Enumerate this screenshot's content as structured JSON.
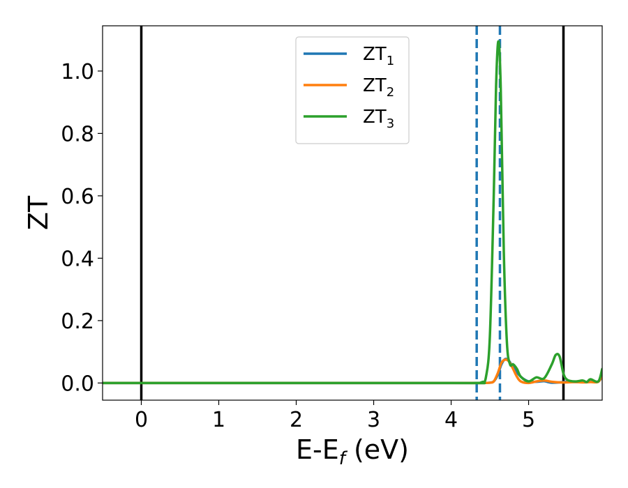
{
  "chart_data": {
    "type": "line",
    "title": "",
    "xlabel": {
      "main": "E-E",
      "sub": "f",
      "suffix": " (eV)"
    },
    "ylabel": "ZT",
    "xlim": [
      -0.5,
      5.95
    ],
    "ylim": [
      -0.055,
      1.145
    ],
    "xticks": [
      0,
      1,
      2,
      3,
      4,
      5
    ],
    "yticks": [
      0.0,
      0.2,
      0.4,
      0.6,
      0.8,
      1.0
    ],
    "xtick_labels": [
      "0",
      "1",
      "2",
      "3",
      "4",
      "5"
    ],
    "ytick_labels": [
      "0.0",
      "0.2",
      "0.4",
      "0.6",
      "0.8",
      "1.0"
    ],
    "grid": false,
    "legend_position": "top-center",
    "vlines": [
      {
        "x": 0.0,
        "style": "solid",
        "color": "#000000"
      },
      {
        "x": 5.45,
        "style": "solid",
        "color": "#000000"
      },
      {
        "x": 4.33,
        "style": "dashed",
        "color": "#1f77b4"
      },
      {
        "x": 4.63,
        "style": "dashed",
        "color": "#1f77b4"
      }
    ],
    "series": [
      {
        "name": "ZT",
        "subscript": "1",
        "color": "#1f77b4",
        "x": [
          -0.5,
          4.0,
          4.3,
          4.4,
          4.5,
          4.55,
          4.6,
          4.65,
          4.7,
          4.75,
          4.8,
          4.9,
          5.0,
          5.1,
          5.2,
          5.25,
          5.3,
          5.4,
          5.5,
          5.6,
          5.7,
          5.8,
          5.9,
          5.95
        ],
        "values": [
          0,
          0,
          0,
          0,
          0.001,
          0.005,
          0.025,
          0.06,
          0.077,
          0.07,
          0.05,
          0.02,
          0.005,
          0.004,
          0.006,
          0.003,
          0.001,
          0.002,
          0.004,
          0.003,
          0.003,
          0.004,
          0.005,
          0.02
        ]
      },
      {
        "name": "ZT",
        "subscript": "2",
        "color": "#ff7f0e",
        "x": [
          -0.5,
          4.0,
          4.3,
          4.4,
          4.5,
          4.55,
          4.6,
          4.65,
          4.7,
          4.75,
          4.8,
          4.85,
          4.9,
          5.0,
          5.1,
          5.2,
          5.3,
          5.4,
          5.5,
          5.6,
          5.7,
          5.8,
          5.9,
          5.95
        ],
        "values": [
          0,
          0,
          0,
          0,
          0.001,
          0.005,
          0.03,
          0.065,
          0.075,
          0.068,
          0.045,
          0.02,
          0.005,
          0.0,
          0.005,
          0.008,
          0.004,
          0.002,
          0.002,
          0.003,
          0.002,
          0.003,
          0.004,
          0.025
        ]
      },
      {
        "name": "ZT",
        "subscript": "3",
        "color": "#2ca02c",
        "x": [
          -0.5,
          4.0,
          4.3,
          4.4,
          4.45,
          4.5,
          4.55,
          4.58,
          4.61,
          4.64,
          4.68,
          4.72,
          4.76,
          4.8,
          4.85,
          4.9,
          5.0,
          5.1,
          5.2,
          5.3,
          5.35,
          5.4,
          5.45,
          5.5,
          5.6,
          5.7,
          5.75,
          5.8,
          5.9,
          5.95
        ],
        "values": [
          0,
          0,
          0,
          0.003,
          0.02,
          0.15,
          0.6,
          0.95,
          1.095,
          0.95,
          0.42,
          0.13,
          0.06,
          0.06,
          0.045,
          0.02,
          0.005,
          0.018,
          0.015,
          0.06,
          0.09,
          0.085,
          0.03,
          0.01,
          0.005,
          0.008,
          0.003,
          0.012,
          0.005,
          0.045
        ]
      }
    ]
  }
}
